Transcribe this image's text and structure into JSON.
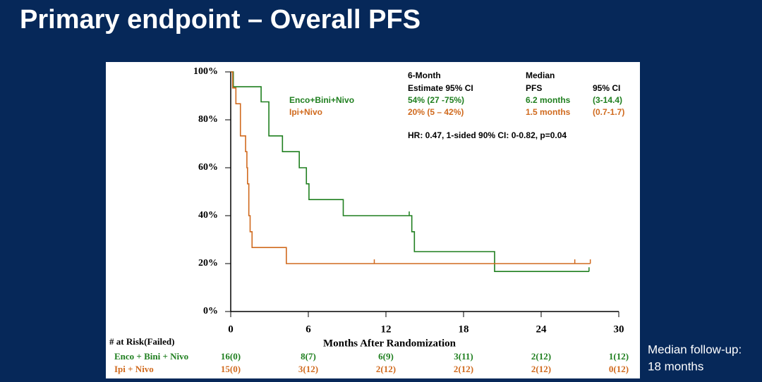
{
  "page_title": "Primary endpoint – Overall PFS",
  "side_note": [
    "Median follow-up:",
    "18 months"
  ],
  "chart_data": {
    "type": "step",
    "xlabel": "Months After Randomization",
    "xlim": [
      0,
      30
    ],
    "xticks": [
      0,
      6,
      12,
      18,
      24,
      30
    ],
    "ylim": [
      0,
      100
    ],
    "yticks": [
      {
        "value": 0,
        "label": "0%"
      },
      {
        "value": 20,
        "label": "20%"
      },
      {
        "value": 40,
        "label": "40%"
      },
      {
        "value": 60,
        "label": "60%"
      },
      {
        "value": 80,
        "label": "80%"
      },
      {
        "value": 100,
        "label": "100%"
      }
    ],
    "table_header": [
      "6-Month",
      "Estimate 95% CI",
      "Median",
      "PFS",
      "95% CI"
    ],
    "annotation": "HR: 0.47, 1-sided 90% CI: 0-0.82, p=0.04",
    "series": [
      {
        "name": "Enco+Bini+Nivo",
        "color": "#1f7f1f",
        "estimate": "54% (27 -75%)",
        "median": "6.2 months",
        "ci": "(3-14.4)",
        "x": [
          0,
          0.2,
          2.35,
          2.95,
          4.0,
          5.3,
          5.85,
          6.05,
          8.7,
          14.0,
          14.2,
          20.4,
          27.7
        ],
        "values": [
          100,
          93.8,
          87.5,
          73.3,
          66.7,
          60,
          53.3,
          46.7,
          40,
          33.3,
          25,
          16.7,
          16.7
        ],
        "censored_x": [
          13.8,
          27.7
        ],
        "censored_y": [
          40,
          16.7
        ]
      },
      {
        "name": "Ipi+Nivo",
        "color": "#d06a1e",
        "estimate": "20% (5 – 42%)",
        "median": "1.5 months",
        "ci": "(0.7-1.7)",
        "x": [
          0,
          0.15,
          0.4,
          0.75,
          1.15,
          1.25,
          1.3,
          1.4,
          1.5,
          1.65,
          4.3,
          27.8
        ],
        "values": [
          100,
          93.3,
          86.7,
          73.3,
          66.7,
          60,
          53.3,
          40,
          33.3,
          26.7,
          20,
          20
        ],
        "censored_x": [
          11.1,
          26.6,
          27.8
        ],
        "censored_y": [
          20,
          20,
          20
        ]
      }
    ],
    "risk_table": {
      "title": "# at Risk(Failed)",
      "rows": [
        {
          "label": "Enco + Bini + Nivo",
          "values": [
            "16(0)",
            "8(7)",
            "6(9)",
            "3(11)",
            "2(12)",
            "1(12)"
          ]
        },
        {
          "label": "Ipi + Nivo",
          "values": [
            "15(0)",
            "3(12)",
            "2(12)",
            "2(12)",
            "2(12)",
            "0(12)"
          ]
        }
      ]
    }
  }
}
